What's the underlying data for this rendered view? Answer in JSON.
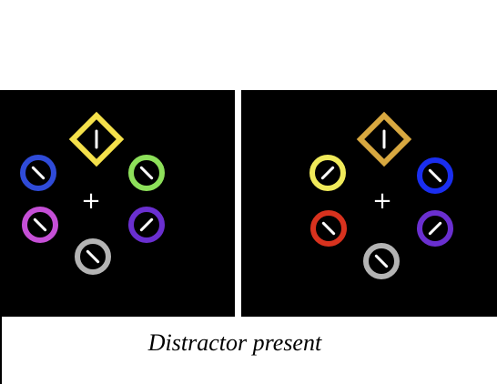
{
  "caption": "Distractor present",
  "colors": {
    "background": "#ffffff",
    "panel": "#000000",
    "fixation": "#ffffff",
    "bar": "#ffffff",
    "pad": "#000000"
  },
  "left_display": {
    "fixation": "+",
    "items": [
      {
        "shape": "diamond",
        "color": "#f4e04b",
        "bar_orientation": "vertical"
      },
      {
        "shape": "circle",
        "color": "#2f4bd8",
        "bar_orientation": "left-tilt"
      },
      {
        "shape": "circle",
        "color": "#8de05a",
        "bar_orientation": "left-tilt"
      },
      {
        "shape": "circle",
        "color": "#c54fd6",
        "bar_orientation": "left-tilt"
      },
      {
        "shape": "circle",
        "color": "#6a2fd0",
        "bar_orientation": "right-tilt"
      },
      {
        "shape": "circle",
        "color": "#b4b4b4",
        "bar_orientation": "left-tilt"
      }
    ]
  },
  "right_display": {
    "fixation": "+",
    "items": [
      {
        "shape": "diamond",
        "color": "#d8a840",
        "bar_orientation": "vertical"
      },
      {
        "shape": "circle",
        "color": "#f0ea5a",
        "bar_orientation": "right-tilt"
      },
      {
        "shape": "circle",
        "color": "#1a2ef0",
        "bar_orientation": "left-tilt"
      },
      {
        "shape": "circle",
        "color": "#d8321e",
        "bar_orientation": "left-tilt"
      },
      {
        "shape": "circle",
        "color": "#6a2fd0",
        "bar_orientation": "right-tilt"
      },
      {
        "shape": "circle",
        "color": "#b4b4b4",
        "bar_orientation": "left-tilt"
      }
    ]
  }
}
